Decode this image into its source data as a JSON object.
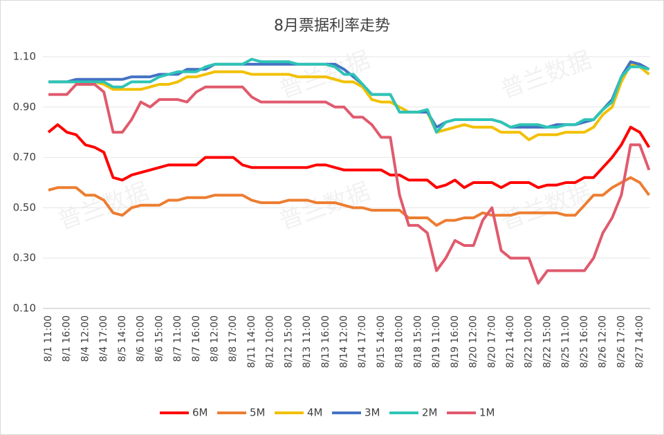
{
  "chart_data": {
    "type": "line",
    "title": "8月票据利率走势",
    "watermark": "普兰数据",
    "categories": [
      "8/1 11:00",
      null,
      "8/1 16:00",
      null,
      "8/4 12:00",
      null,
      "8/4 17:00",
      null,
      "8/5 14:00",
      null,
      "8/6 10:00",
      null,
      "8/6 15:00",
      null,
      "8/7 11:00",
      null,
      "8/7 16:00",
      null,
      "8/8 12:00",
      null,
      "8/8 17:00",
      null,
      "8/11 14:00",
      null,
      "8/12 10:00",
      null,
      "8/12 15:00",
      null,
      "8/13 11:00",
      null,
      "8/13 16:00",
      null,
      "8/14 12:00",
      null,
      "8/14 17:00",
      null,
      "8/15 14:00",
      null,
      "8/18 10:00",
      null,
      "8/18 15:00",
      null,
      "8/19 11:00",
      null,
      "8/19 16:00",
      null,
      "8/20 12:00",
      null,
      "8/20 17:00",
      null,
      "8/21 14:00",
      null,
      "8/22 10:00",
      null,
      "8/22 15:00",
      null,
      "8/25 11:00",
      null,
      "8/25 16:00",
      null,
      "8/26 12:00",
      null,
      "8/26 17:00",
      null,
      "8/27 14:00",
      null
    ],
    "series": [
      {
        "name": "6M",
        "color": "#ff0000",
        "values": [
          0.8,
          0.83,
          0.8,
          0.79,
          0.75,
          0.74,
          0.72,
          0.62,
          0.61,
          0.63,
          0.64,
          0.65,
          0.66,
          0.67,
          0.67,
          0.67,
          0.67,
          0.7,
          0.7,
          0.7,
          0.7,
          0.67,
          0.66,
          0.66,
          0.66,
          0.66,
          0.66,
          0.66,
          0.66,
          0.67,
          0.67,
          0.66,
          0.65,
          0.65,
          0.65,
          0.65,
          0.65,
          0.63,
          0.63,
          0.61,
          0.61,
          0.61,
          0.58,
          0.59,
          0.61,
          0.58,
          0.6,
          0.6,
          0.6,
          0.58,
          0.6,
          0.6,
          0.6,
          0.58,
          0.59,
          0.59,
          0.6,
          0.6,
          0.62,
          0.62,
          0.66,
          0.7,
          0.75,
          0.82,
          0.8,
          0.74
        ]
      },
      {
        "name": "5M",
        "color": "#ed7d31",
        "values": [
          0.57,
          0.58,
          0.58,
          0.58,
          0.55,
          0.55,
          0.53,
          0.48,
          0.47,
          0.5,
          0.51,
          0.51,
          0.51,
          0.53,
          0.53,
          0.54,
          0.54,
          0.54,
          0.55,
          0.55,
          0.55,
          0.55,
          0.53,
          0.52,
          0.52,
          0.52,
          0.53,
          0.53,
          0.53,
          0.52,
          0.52,
          0.52,
          0.51,
          0.5,
          0.5,
          0.49,
          0.49,
          0.49,
          0.49,
          0.46,
          0.46,
          0.46,
          0.43,
          0.45,
          0.45,
          0.46,
          0.46,
          0.48,
          0.47,
          0.47,
          0.47,
          0.48,
          0.48,
          0.48,
          0.48,
          0.48,
          0.47,
          0.47,
          0.51,
          0.55,
          0.55,
          0.58,
          0.6,
          0.62,
          0.6,
          0.55
        ]
      },
      {
        "name": "4M",
        "color": "#f2c000",
        "values": [
          1.0,
          1.0,
          1.0,
          1.0,
          1.0,
          1.0,
          0.99,
          0.97,
          0.97,
          0.97,
          0.97,
          0.98,
          0.99,
          0.99,
          1.0,
          1.02,
          1.02,
          1.03,
          1.04,
          1.04,
          1.04,
          1.04,
          1.03,
          1.03,
          1.03,
          1.03,
          1.03,
          1.02,
          1.02,
          1.02,
          1.02,
          1.01,
          1.0,
          1.0,
          0.98,
          0.93,
          0.92,
          0.92,
          0.9,
          0.88,
          0.88,
          0.88,
          0.8,
          0.81,
          0.82,
          0.83,
          0.82,
          0.82,
          0.82,
          0.8,
          0.8,
          0.8,
          0.77,
          0.79,
          0.79,
          0.79,
          0.8,
          0.8,
          0.8,
          0.82,
          0.87,
          0.9,
          1.0,
          1.07,
          1.06,
          1.03
        ]
      },
      {
        "name": "3M",
        "color": "#4472c4",
        "values": [
          1.0,
          1.0,
          1.0,
          1.01,
          1.01,
          1.01,
          1.01,
          1.01,
          1.01,
          1.02,
          1.02,
          1.02,
          1.03,
          1.03,
          1.03,
          1.05,
          1.05,
          1.05,
          1.07,
          1.07,
          1.07,
          1.07,
          1.07,
          1.07,
          1.07,
          1.07,
          1.07,
          1.07,
          1.07,
          1.07,
          1.07,
          1.07,
          1.05,
          1.02,
          0.99,
          0.95,
          0.95,
          0.95,
          0.88,
          0.88,
          0.88,
          0.88,
          0.82,
          0.84,
          0.85,
          0.85,
          0.85,
          0.85,
          0.85,
          0.84,
          0.82,
          0.82,
          0.82,
          0.82,
          0.82,
          0.83,
          0.83,
          0.83,
          0.84,
          0.85,
          0.89,
          0.93,
          1.02,
          1.08,
          1.07,
          1.05
        ]
      },
      {
        "name": "2M",
        "color": "#2ec4b6",
        "values": [
          1.0,
          1.0,
          1.0,
          1.0,
          1.0,
          1.0,
          1.0,
          0.98,
          0.98,
          1.0,
          1.0,
          1.0,
          1.02,
          1.03,
          1.04,
          1.04,
          1.04,
          1.06,
          1.07,
          1.07,
          1.07,
          1.07,
          1.09,
          1.08,
          1.08,
          1.08,
          1.08,
          1.07,
          1.07,
          1.07,
          1.07,
          1.06,
          1.03,
          1.03,
          0.99,
          0.95,
          0.95,
          0.95,
          0.88,
          0.88,
          0.88,
          0.89,
          0.8,
          0.84,
          0.85,
          0.85,
          0.85,
          0.85,
          0.85,
          0.84,
          0.82,
          0.83,
          0.83,
          0.83,
          0.82,
          0.82,
          0.83,
          0.83,
          0.85,
          0.85,
          0.89,
          0.92,
          1.02,
          1.06,
          1.06,
          1.05
        ]
      },
      {
        "name": "1M",
        "color": "#e05a6d",
        "values": [
          0.95,
          0.95,
          0.95,
          0.99,
          0.99,
          0.99,
          0.96,
          0.8,
          0.8,
          0.85,
          0.92,
          0.9,
          0.93,
          0.93,
          0.93,
          0.92,
          0.96,
          0.98,
          0.98,
          0.98,
          0.98,
          0.98,
          0.94,
          0.92,
          0.92,
          0.92,
          0.92,
          0.92,
          0.92,
          0.92,
          0.92,
          0.9,
          0.9,
          0.86,
          0.86,
          0.83,
          0.78,
          0.78,
          0.55,
          0.43,
          0.43,
          0.4,
          0.25,
          0.3,
          0.37,
          0.35,
          0.35,
          0.45,
          0.5,
          0.33,
          0.3,
          0.3,
          0.3,
          0.2,
          0.25,
          0.25,
          0.25,
          0.25,
          0.25,
          0.3,
          0.4,
          0.46,
          0.55,
          0.75,
          0.75,
          0.65
        ]
      }
    ],
    "ylim": [
      0.1,
      1.1
    ],
    "yticks": [
      {
        "value": 0.1,
        "label": "0.10"
      },
      {
        "value": 0.3,
        "label": "0.30"
      },
      {
        "value": 0.5,
        "label": "0.50"
      },
      {
        "value": 0.7,
        "label": "0.70"
      },
      {
        "value": 0.9,
        "label": "0.90"
      },
      {
        "value": 1.1,
        "label": "1.10"
      }
    ],
    "grid": true,
    "legend": "bottom"
  }
}
